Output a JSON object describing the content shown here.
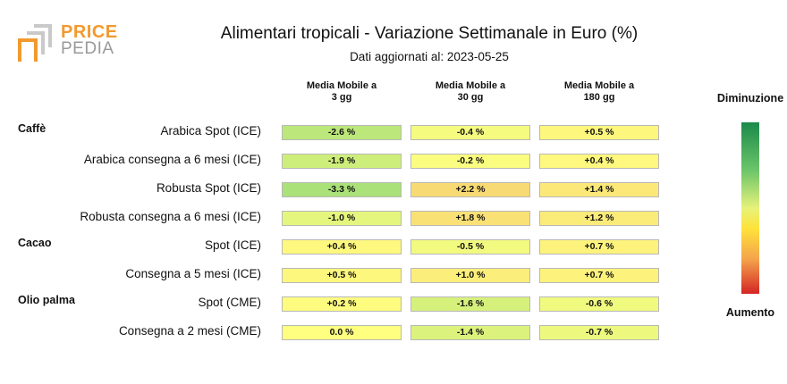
{
  "brand": {
    "word1": "PRICE",
    "word2": "PEDIA"
  },
  "title": "Alimentari tropicali - Variazione Settimanale in Euro (%)",
  "subtitle": "Dati aggiornati al: 2023-05-25",
  "columns": [
    {
      "line1": "Media Mobile a",
      "line2": "3 gg"
    },
    {
      "line1": "Media Mobile a",
      "line2": "30 gg"
    },
    {
      "line1": "Media Mobile a",
      "line2": "180 gg"
    }
  ],
  "groups": [
    {
      "name": "Caffè",
      "row_index": 0
    },
    {
      "name": "Cacao",
      "row_index": 4
    },
    {
      "name": "Olio palma",
      "row_index": 6
    }
  ],
  "legend": {
    "top": "Diminuzione",
    "bottom": "Aumento"
  },
  "colors": {
    "decrease_strong": "#1a8a4a",
    "neutral": "#ffff80",
    "increase_strong": "#d42525",
    "cell_border": "#b8b8b8"
  },
  "chart_data": {
    "type": "table",
    "title": "Alimentari tropicali - Variazione Settimanale in Euro (%)",
    "subtitle": "Dati aggiornati al: 2023-05-25",
    "columns": [
      "Media Mobile a 3 gg",
      "Media Mobile a 30 gg",
      "Media Mobile a 180 gg"
    ],
    "rows": [
      {
        "group": "Caffè",
        "label": "Arabica Spot (ICE)",
        "values": [
          -2.6,
          -0.4,
          0.5
        ],
        "display": [
          "-2.6 %",
          "-0.4 %",
          "+0.5 %"
        ]
      },
      {
        "group": "Caffè",
        "label": "Arabica consegna a 6 mesi (ICE)",
        "values": [
          -1.9,
          -0.2,
          0.4
        ],
        "display": [
          "-1.9 %",
          "-0.2 %",
          "+0.4 %"
        ]
      },
      {
        "group": "Caffè",
        "label": "Robusta Spot (ICE)",
        "values": [
          -3.3,
          2.2,
          1.4
        ],
        "display": [
          "-3.3 %",
          "+2.2 %",
          "+1.4 %"
        ]
      },
      {
        "group": "Caffè",
        "label": "Robusta consegna a 6 mesi (ICE)",
        "values": [
          -1.0,
          1.8,
          1.2
        ],
        "display": [
          "-1.0 %",
          "+1.8 %",
          "+1.2 %"
        ]
      },
      {
        "group": "Cacao",
        "label": "Spot (ICE)",
        "values": [
          0.4,
          -0.5,
          0.7
        ],
        "display": [
          "+0.4 %",
          "-0.5 %",
          "+0.7 %"
        ]
      },
      {
        "group": "Cacao",
        "label": "Consegna a 5 mesi (ICE)",
        "values": [
          0.5,
          1.0,
          0.7
        ],
        "display": [
          "+0.5 %",
          "+1.0 %",
          "+0.7 %"
        ]
      },
      {
        "group": "Olio palma",
        "label": "Spot (CME)",
        "values": [
          0.2,
          -1.6,
          -0.6
        ],
        "display": [
          "+0.2 %",
          "-1.6 %",
          "-0.6 %"
        ]
      },
      {
        "group": "Olio palma",
        "label": "Consegna a 2 mesi (CME)",
        "values": [
          0.0,
          -1.4,
          -0.7
        ],
        "display": [
          "0.0 %",
          "-1.4 %",
          "-0.7 %"
        ]
      }
    ]
  }
}
